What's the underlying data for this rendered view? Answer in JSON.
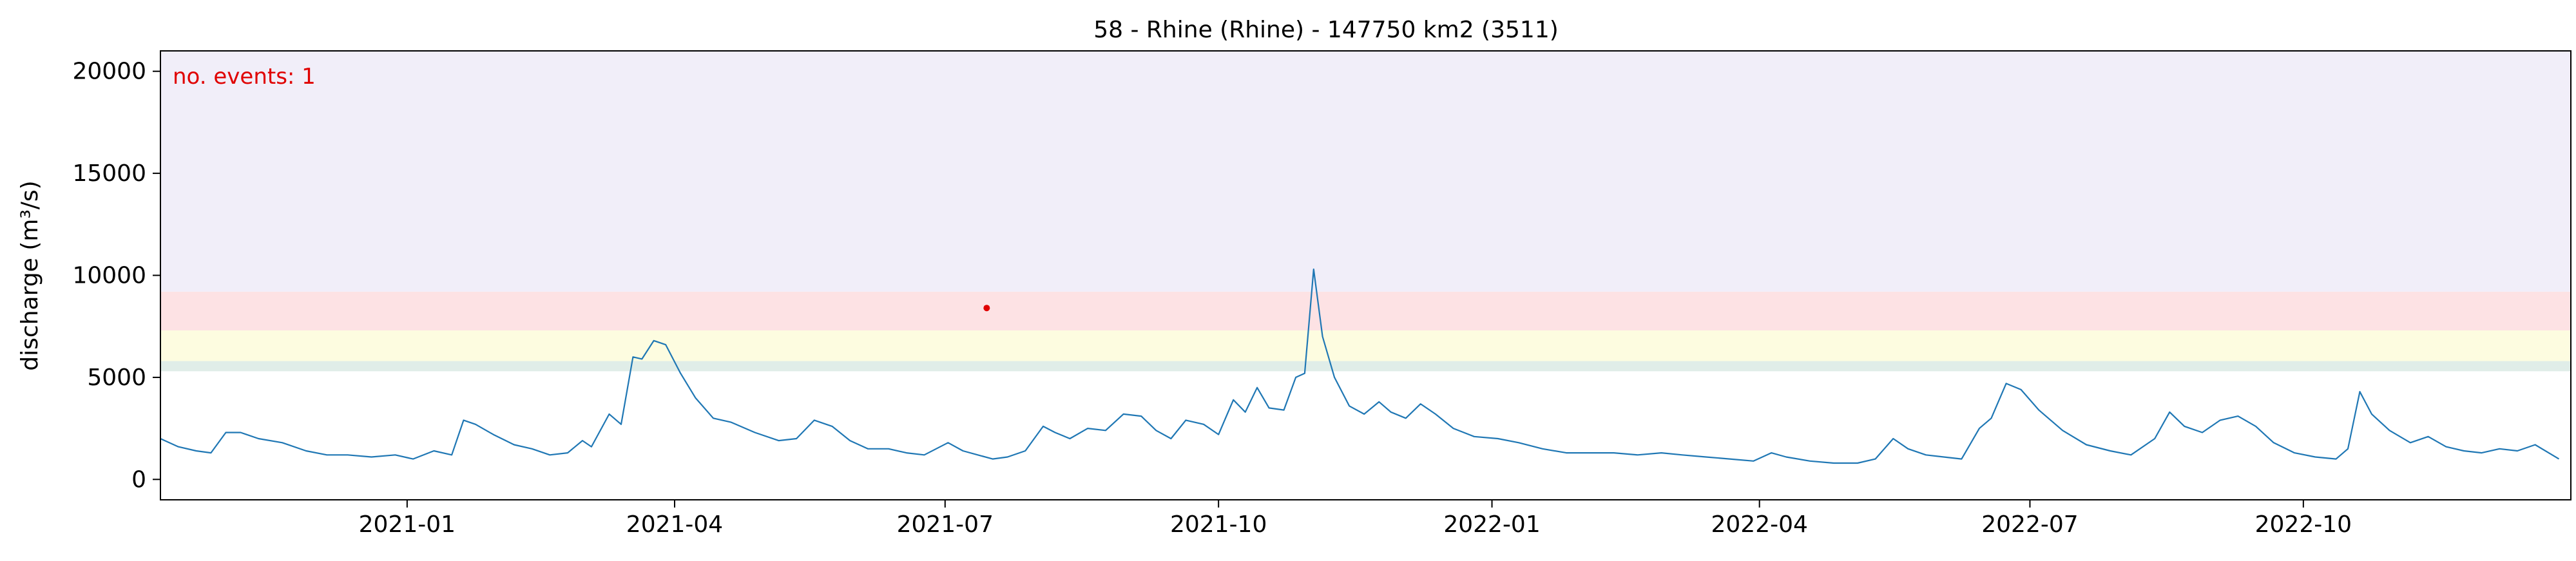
{
  "chart_data": {
    "type": "line",
    "title": "58 - Rhine (Rhine) - 147750 km2 (3511)",
    "xlabel": "",
    "ylabel": "discharge (m³/s)",
    "xlim": [
      "2020-10-10",
      "2022-12-30"
    ],
    "ylim": [
      -1000,
      21000
    ],
    "grid": false,
    "x_ticks": [
      "2021-01-01",
      "2021-04-01",
      "2021-07-01",
      "2021-10-01",
      "2022-01-01",
      "2022-04-01",
      "2022-07-01",
      "2022-10-01"
    ],
    "x_tick_labels": [
      "2021-01",
      "2021-04",
      "2021-07",
      "2021-10",
      "2022-01",
      "2022-04",
      "2022-07",
      "2022-10"
    ],
    "y_ticks": [
      0,
      5000,
      10000,
      15000,
      20000
    ],
    "y_tick_labels": [
      "0",
      "5000",
      "10000",
      "15000",
      "20000"
    ],
    "threshold_bands": [
      {
        "from": 5300,
        "to": 5800,
        "color": "#e0ede8"
      },
      {
        "from": 5800,
        "to": 7300,
        "color": "#fdfce0"
      },
      {
        "from": 7300,
        "to": 9200,
        "color": "#fde2e4"
      },
      {
        "from": 9200,
        "to": 21000,
        "color": "#f1eef9"
      }
    ],
    "line_color": "#1f77b4",
    "annotation": {
      "text": "no. events: 1",
      "color": "#e00000",
      "position": "top-left"
    },
    "events": [
      {
        "date": "2021-07-15",
        "value": 8400,
        "color": "#e00000"
      }
    ],
    "series": [
      {
        "points": [
          [
            "2020-10-10",
            2000
          ],
          [
            "2020-10-16",
            1600
          ],
          [
            "2020-10-22",
            1400
          ],
          [
            "2020-10-27",
            1300
          ],
          [
            "2020-11-01",
            2300
          ],
          [
            "2020-11-06",
            2300
          ],
          [
            "2020-11-12",
            2000
          ],
          [
            "2020-11-20",
            1800
          ],
          [
            "2020-11-28",
            1400
          ],
          [
            "2020-12-05",
            1200
          ],
          [
            "2020-12-12",
            1200
          ],
          [
            "2020-12-20",
            1100
          ],
          [
            "2020-12-28",
            1200
          ],
          [
            "2021-01-03",
            1000
          ],
          [
            "2021-01-10",
            1400
          ],
          [
            "2021-01-16",
            1200
          ],
          [
            "2021-01-20",
            2900
          ],
          [
            "2021-01-24",
            2700
          ],
          [
            "2021-01-30",
            2200
          ],
          [
            "2021-02-06",
            1700
          ],
          [
            "2021-02-12",
            1500
          ],
          [
            "2021-02-18",
            1200
          ],
          [
            "2021-02-24",
            1300
          ],
          [
            "2021-03-01",
            1900
          ],
          [
            "2021-03-04",
            1600
          ],
          [
            "2021-03-10",
            3200
          ],
          [
            "2021-03-14",
            2700
          ],
          [
            "2021-03-18",
            6000
          ],
          [
            "2021-03-21",
            5900
          ],
          [
            "2021-03-25",
            6800
          ],
          [
            "2021-03-29",
            6600
          ],
          [
            "2021-04-03",
            5200
          ],
          [
            "2021-04-08",
            4000
          ],
          [
            "2021-04-14",
            3000
          ],
          [
            "2021-04-20",
            2800
          ],
          [
            "2021-04-28",
            2300
          ],
          [
            "2021-05-06",
            1900
          ],
          [
            "2021-05-12",
            2000
          ],
          [
            "2021-05-18",
            2900
          ],
          [
            "2021-05-24",
            2600
          ],
          [
            "2021-05-30",
            1900
          ],
          [
            "2021-06-05",
            1500
          ],
          [
            "2021-06-12",
            1500
          ],
          [
            "2021-06-18",
            1300
          ],
          [
            "2021-06-24",
            1200
          ],
          [
            "2021-07-02",
            1800
          ],
          [
            "2021-07-07",
            1400
          ],
          [
            "2021-07-12",
            1200
          ],
          [
            "2021-07-17",
            1000
          ],
          [
            "2021-07-22",
            1100
          ],
          [
            "2021-07-28",
            1400
          ],
          [
            "2021-08-03",
            2600
          ],
          [
            "2021-08-07",
            2300
          ],
          [
            "2021-08-12",
            2000
          ],
          [
            "2021-08-18",
            2500
          ],
          [
            "2021-08-24",
            2400
          ],
          [
            "2021-08-30",
            3200
          ],
          [
            "2021-09-05",
            3100
          ],
          [
            "2021-09-10",
            2400
          ],
          [
            "2021-09-15",
            2000
          ],
          [
            "2021-09-20",
            2900
          ],
          [
            "2021-09-26",
            2700
          ],
          [
            "2021-10-01",
            2200
          ],
          [
            "2021-10-06",
            3900
          ],
          [
            "2021-10-10",
            3300
          ],
          [
            "2021-10-14",
            4500
          ],
          [
            "2021-10-18",
            3500
          ],
          [
            "2021-10-23",
            3400
          ],
          [
            "2021-10-27",
            5000
          ],
          [
            "2021-10-30",
            5200
          ],
          [
            "2021-11-02",
            10300
          ],
          [
            "2021-11-05",
            7000
          ],
          [
            "2021-11-09",
            5000
          ],
          [
            "2021-11-14",
            3600
          ],
          [
            "2021-11-19",
            3200
          ],
          [
            "2021-11-24",
            3800
          ],
          [
            "2021-11-28",
            3300
          ],
          [
            "2021-12-03",
            3000
          ],
          [
            "2021-12-08",
            3700
          ],
          [
            "2021-12-13",
            3200
          ],
          [
            "2021-12-19",
            2500
          ],
          [
            "2021-12-26",
            2100
          ],
          [
            "2022-01-03",
            2000
          ],
          [
            "2022-01-10",
            1800
          ],
          [
            "2022-01-18",
            1500
          ],
          [
            "2022-01-26",
            1300
          ],
          [
            "2022-02-03",
            1300
          ],
          [
            "2022-02-11",
            1300
          ],
          [
            "2022-02-19",
            1200
          ],
          [
            "2022-02-27",
            1300
          ],
          [
            "2022-03-06",
            1200
          ],
          [
            "2022-03-14",
            1100
          ],
          [
            "2022-03-22",
            1000
          ],
          [
            "2022-03-30",
            900
          ],
          [
            "2022-04-05",
            1300
          ],
          [
            "2022-04-10",
            1100
          ],
          [
            "2022-04-18",
            900
          ],
          [
            "2022-04-26",
            800
          ],
          [
            "2022-05-04",
            800
          ],
          [
            "2022-05-10",
            1000
          ],
          [
            "2022-05-16",
            2000
          ],
          [
            "2022-05-21",
            1500
          ],
          [
            "2022-05-27",
            1200
          ],
          [
            "2022-06-02",
            1100
          ],
          [
            "2022-06-08",
            1000
          ],
          [
            "2022-06-14",
            2500
          ],
          [
            "2022-06-18",
            3000
          ],
          [
            "2022-06-23",
            4700
          ],
          [
            "2022-06-28",
            4400
          ],
          [
            "2022-07-04",
            3400
          ],
          [
            "2022-07-12",
            2400
          ],
          [
            "2022-07-20",
            1700
          ],
          [
            "2022-07-28",
            1400
          ],
          [
            "2022-08-04",
            1200
          ],
          [
            "2022-08-12",
            2000
          ],
          [
            "2022-08-17",
            3300
          ],
          [
            "2022-08-22",
            2600
          ],
          [
            "2022-08-28",
            2300
          ],
          [
            "2022-09-03",
            2900
          ],
          [
            "2022-09-09",
            3100
          ],
          [
            "2022-09-15",
            2600
          ],
          [
            "2022-09-21",
            1800
          ],
          [
            "2022-09-28",
            1300
          ],
          [
            "2022-10-05",
            1100
          ],
          [
            "2022-10-12",
            1000
          ],
          [
            "2022-10-16",
            1500
          ],
          [
            "2022-10-20",
            4300
          ],
          [
            "2022-10-24",
            3200
          ],
          [
            "2022-10-30",
            2400
          ],
          [
            "2022-11-06",
            1800
          ],
          [
            "2022-11-12",
            2100
          ],
          [
            "2022-11-18",
            1600
          ],
          [
            "2022-11-24",
            1400
          ],
          [
            "2022-11-30",
            1300
          ],
          [
            "2022-12-06",
            1500
          ],
          [
            "2022-12-12",
            1400
          ],
          [
            "2022-12-18",
            1700
          ],
          [
            "2022-12-26",
            1000
          ]
        ]
      }
    ]
  }
}
